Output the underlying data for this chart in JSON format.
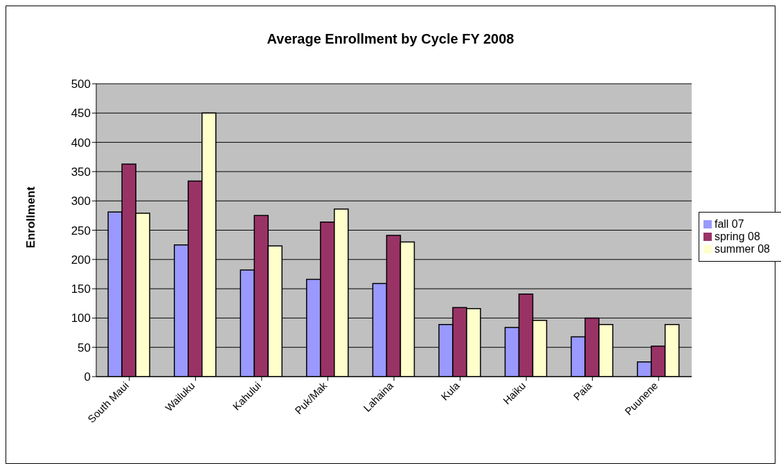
{
  "chart_data": {
    "type": "bar",
    "title": "Average Enrollment by Cycle FY 2008",
    "ylabel": "Enrollment",
    "categories": [
      "South Maui",
      "Wailuku",
      "Kahului",
      "Puk/Mak",
      "Lahaina",
      "Kula",
      "Haiku",
      "Paia",
      "Puunene"
    ],
    "series": [
      {
        "name": "fall 07",
        "color": "#9999ff",
        "values": [
          281,
          225,
          182,
          166,
          159,
          89,
          84,
          68,
          25
        ]
      },
      {
        "name": "spring 08",
        "color": "#993366",
        "values": [
          363,
          334,
          275,
          264,
          241,
          118,
          141,
          100,
          52
        ]
      },
      {
        "name": "summer 08",
        "color": "#ffffcc",
        "values": [
          279,
          450,
          223,
          286,
          230,
          116,
          96,
          89,
          89
        ]
      }
    ],
    "ylim": [
      0,
      500
    ],
    "yticks": [
      0,
      50,
      100,
      150,
      200,
      250,
      300,
      350,
      400,
      450,
      500
    ],
    "grid": "y",
    "legend": "right"
  }
}
